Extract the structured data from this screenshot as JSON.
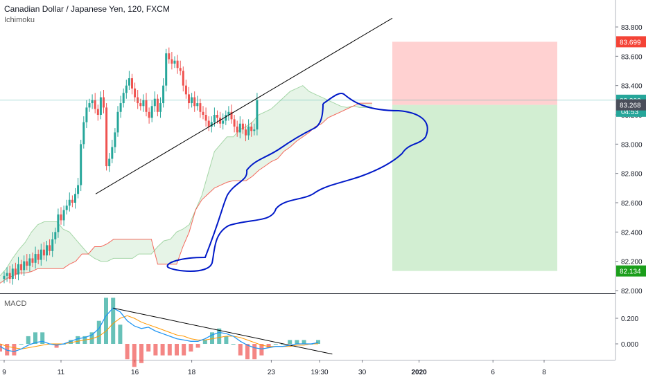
{
  "header": {
    "symbol_title": "Canadian Dollar / Japanese Yen, 120, FXCM",
    "indicator": "Ichimoku",
    "macd_label": "MACD"
  },
  "badges": {
    "target_price": "83.699",
    "current_price": "83.300",
    "countdown": "04:53",
    "entry_price": "83.268",
    "stop_price": "82.134"
  },
  "colors": {
    "up": "#26a69a",
    "down": "#ef5350",
    "baseline_kumo": "#f44336",
    "trend_line": "#000000",
    "path_drawing": "#0019c8",
    "target_zone": "#ffc9c9",
    "stop_zone": "#cdeccd",
    "macd_line": "#2196f3",
    "signal_line": "#ff9800",
    "hist_pos": "#26a69a",
    "hist_neg": "#ef5350"
  },
  "chart_data": [
    {
      "type": "candlestick",
      "title": "Canadian Dollar / Japanese Yen, 120, FXCM",
      "indicator": "Ichimoku",
      "ylim": [
        82.0,
        83.85
      ],
      "y_ticks": [
        "83.800",
        "83.600",
        "83.400",
        "83.200",
        "83.000",
        "82.800",
        "82.600",
        "82.400",
        "82.200",
        "82.000"
      ],
      "x_ticks": [
        "9",
        "11",
        "16",
        "18",
        "23",
        "19:30",
        "30",
        "2020",
        "6",
        "8"
      ],
      "x_tick_index": [
        0,
        20,
        46,
        66,
        94,
        111,
        126,
        146,
        172,
        190
      ],
      "candle_close": [
        82.1,
        82.12,
        82.08,
        82.15,
        82.11,
        82.18,
        82.14,
        82.2,
        82.17,
        82.22,
        82.19,
        82.25,
        82.21,
        82.28,
        82.24,
        82.31,
        82.27,
        82.35,
        82.4,
        82.52,
        82.48,
        82.55,
        82.58,
        82.62,
        82.6,
        82.66,
        82.72,
        83.0,
        83.15,
        83.25,
        83.28,
        83.3,
        83.24,
        83.2,
        83.32,
        83.25,
        82.85,
        82.9,
        82.98,
        83.08,
        83.22,
        83.28,
        83.35,
        83.4,
        83.45,
        83.38,
        83.32,
        83.28,
        83.26,
        83.3,
        83.22,
        83.18,
        83.26,
        83.31,
        83.22,
        83.28,
        83.4,
        83.62,
        83.58,
        83.55,
        83.57,
        83.52,
        83.5,
        83.4,
        83.34,
        83.28,
        83.32,
        83.26,
        83.28,
        83.22,
        83.2,
        83.16,
        83.12,
        83.15,
        83.2,
        83.18,
        83.14,
        83.16,
        83.2,
        83.22,
        83.17,
        83.12,
        83.08,
        83.14,
        83.1,
        83.06,
        83.12,
        83.09,
        83.1,
        83.3
      ],
      "kumo_upper": [
        82.1,
        82.15,
        82.22,
        82.28,
        82.33,
        82.4,
        82.45,
        82.47,
        82.47,
        82.47,
        82.42,
        82.4,
        82.35,
        82.3,
        82.25,
        82.22,
        82.2,
        82.2,
        82.22,
        82.22,
        82.22,
        82.22,
        82.25,
        82.25,
        82.25,
        82.3,
        82.34,
        82.35,
        82.4,
        82.42,
        82.45,
        82.55,
        82.65,
        82.8,
        82.95,
        83.0,
        83.05,
        83.05,
        83.1,
        83.12,
        83.15,
        83.2,
        83.22,
        83.24,
        83.28,
        83.32,
        83.36,
        83.38,
        83.4,
        83.36,
        83.34,
        83.32,
        83.3,
        83.28,
        83.26,
        83.25,
        83.26,
        83.25,
        83.25,
        83.25
      ],
      "kumo_lower": [
        82.05,
        82.08,
        82.1,
        82.12,
        82.12,
        82.13,
        82.15,
        82.15,
        82.15,
        82.15,
        82.15,
        82.18,
        82.2,
        82.25,
        82.25,
        82.3,
        82.3,
        82.32,
        82.35,
        82.35,
        82.35,
        82.35,
        82.35,
        82.35,
        82.35,
        82.18,
        82.18,
        82.18,
        82.18,
        82.3,
        82.4,
        82.55,
        82.62,
        82.66,
        82.7,
        82.72,
        82.74,
        82.75,
        82.75,
        82.75,
        82.78,
        82.82,
        82.85,
        82.88,
        82.9,
        82.95,
        82.98,
        83.02,
        83.05,
        83.08,
        83.12,
        83.14,
        83.18,
        83.2,
        83.22,
        83.24,
        83.26,
        83.28,
        83.28,
        83.28
      ],
      "trend_line": [
        [
          82.66,
          13
        ],
        [
          83.86,
          50
        ]
      ],
      "current_price": 83.3,
      "entry_price": 83.268,
      "target_price": 83.699,
      "stop_price": 82.134
    },
    {
      "type": "line",
      "title": "MACD",
      "ylim": [
        -0.08,
        0.28
      ],
      "y_ticks": [
        "0.200",
        "0.000"
      ],
      "macd": [
        -0.02,
        -0.05,
        -0.06,
        -0.04,
        -0.01,
        0.01,
        0.02,
        0.0,
        -0.01,
        0.0,
        0.02,
        0.04,
        0.05,
        0.07,
        0.12,
        0.22,
        0.28,
        0.25,
        0.18,
        0.14,
        0.12,
        0.13,
        0.1,
        0.08,
        0.06,
        0.04,
        0.03,
        0.02,
        0.02,
        0.04,
        0.07,
        0.09,
        0.08,
        0.06,
        0.02,
        -0.01,
        -0.03,
        -0.04,
        -0.03,
        -0.02,
        -0.02,
        -0.01,
        0.0,
        0.0,
        0.0,
        0.01
      ],
      "signal": [
        0.0,
        -0.02,
        -0.03,
        -0.04,
        -0.03,
        -0.02,
        -0.01,
        0.0,
        0.0,
        0.0,
        0.01,
        0.02,
        0.03,
        0.04,
        0.06,
        0.1,
        0.16,
        0.2,
        0.22,
        0.2,
        0.17,
        0.15,
        0.13,
        0.11,
        0.09,
        0.07,
        0.06,
        0.04,
        0.03,
        0.03,
        0.04,
        0.05,
        0.06,
        0.06,
        0.05,
        0.03,
        0.01,
        -0.01,
        -0.02,
        -0.02,
        -0.02,
        -0.02,
        -0.01,
        -0.01,
        0.0,
        0.0
      ],
      "trend_line": [
        [
          0.28,
          16
        ],
        [
          -0.08,
          47
        ]
      ]
    }
  ]
}
